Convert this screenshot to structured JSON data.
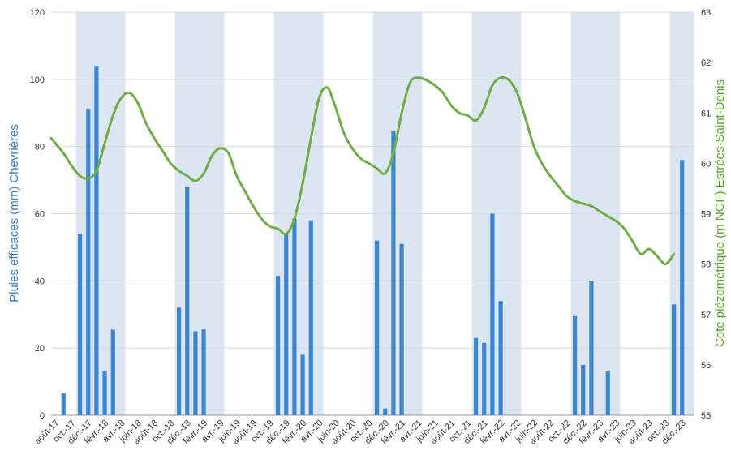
{
  "chart_data": {
    "type": "bar+line",
    "title": "",
    "ylabel_left": "Pluies efficaces (mm) Chevrières",
    "ylabel_right": "Cote piézométrique (m NGF) Estrées-Saint-Denis",
    "ylim_left": [
      0,
      120
    ],
    "yticks_left": [
      "0",
      "20",
      "40",
      "60",
      "80",
      "100",
      "120"
    ],
    "ylim_right": [
      55,
      63
    ],
    "yticks_right": [
      "55",
      "56",
      "57",
      "58",
      "59",
      "60",
      "61",
      "62",
      "63"
    ],
    "grid": "horizontal",
    "colors": {
      "bars": "#3c85cf",
      "line": "#70ad47",
      "band": "#dce6f2"
    },
    "x_tick_labels": [
      "août-17",
      "oct.-17",
      "déc.-17",
      "févr.-18",
      "avr.-18",
      "juin-18",
      "août-18",
      "oct.-18",
      "déc.-18",
      "févr.-19",
      "avr.-19",
      "juin-19",
      "août-19",
      "oct.-19",
      "déc.-19",
      "févr.-20",
      "avr.-20",
      "juin-20",
      "août-20",
      "oct.-20",
      "déc.-20",
      "févr.-21",
      "avr.-21",
      "juin-21",
      "août-21",
      "oct.-21",
      "déc.-21",
      "févr.-22",
      "avr.-22",
      "juin-22",
      "août-22",
      "oct.-22",
      "déc.-22",
      "févr.-23",
      "avr.-23",
      "juin-23",
      "août-23",
      "oct.-23",
      "déc.-23"
    ],
    "shaded_periods": [
      {
        "from": "2017-10",
        "to": "2018-03"
      },
      {
        "from": "2018-10",
        "to": "2019-03"
      },
      {
        "from": "2019-10",
        "to": "2020-03"
      },
      {
        "from": "2020-10",
        "to": "2021-03"
      },
      {
        "from": "2021-10",
        "to": "2022-03"
      },
      {
        "from": "2022-10",
        "to": "2023-03"
      },
      {
        "from": "2023-10",
        "to": "2023-12"
      }
    ],
    "series": [
      {
        "kind": "bar",
        "axis": "left",
        "points": [
          {
            "month": "2017-08",
            "value": 6.5
          },
          {
            "month": "2017-10",
            "value": 54
          },
          {
            "month": "2017-11",
            "value": 91
          },
          {
            "month": "2017-12",
            "value": 104
          },
          {
            "month": "2018-01",
            "value": 13
          },
          {
            "month": "2018-02",
            "value": 25.5
          },
          {
            "month": "2018-10",
            "value": 32
          },
          {
            "month": "2018-11",
            "value": 68
          },
          {
            "month": "2018-12",
            "value": 25
          },
          {
            "month": "2019-01",
            "value": 25.5
          },
          {
            "month": "2019-10",
            "value": 41.5
          },
          {
            "month": "2019-11",
            "value": 54
          },
          {
            "month": "2019-12",
            "value": 58.5
          },
          {
            "month": "2020-01",
            "value": 18
          },
          {
            "month": "2020-02",
            "value": 58
          },
          {
            "month": "2020-10",
            "value": 52
          },
          {
            "month": "2020-11",
            "value": 2
          },
          {
            "month": "2020-12",
            "value": 84.5
          },
          {
            "month": "2021-01",
            "value": 51
          },
          {
            "month": "2021-10",
            "value": 23
          },
          {
            "month": "2021-11",
            "value": 21.5
          },
          {
            "month": "2021-12",
            "value": 60
          },
          {
            "month": "2022-01",
            "value": 34
          },
          {
            "month": "2022-10",
            "value": 29.5
          },
          {
            "month": "2022-11",
            "value": 15
          },
          {
            "month": "2022-12",
            "value": 40
          },
          {
            "month": "2023-02",
            "value": 13
          },
          {
            "month": "2023-10",
            "value": 33
          },
          {
            "month": "2023-11",
            "value": 76
          }
        ]
      },
      {
        "kind": "line",
        "axis": "right",
        "points": [
          {
            "month": "2017-07",
            "value": 60.5
          },
          {
            "month": "2017-08",
            "value": 60.2
          },
          {
            "month": "2017-09",
            "value": 59.95
          },
          {
            "month": "2017-10",
            "value": 59.75
          },
          {
            "month": "2017-11",
            "value": 59.7
          },
          {
            "month": "2017-12",
            "value": 59.85
          },
          {
            "month": "2018-01",
            "value": 60.4
          },
          {
            "month": "2018-02",
            "value": 60.95
          },
          {
            "month": "2018-03",
            "value": 61.3
          },
          {
            "month": "2018-04",
            "value": 61.4
          },
          {
            "month": "2018-05",
            "value": 61.2
          },
          {
            "month": "2018-06",
            "value": 60.8
          },
          {
            "month": "2018-07",
            "value": 60.5
          },
          {
            "month": "2018-08",
            "value": 60.25
          },
          {
            "month": "2018-09",
            "value": 60.0
          },
          {
            "month": "2018-10",
            "value": 59.85
          },
          {
            "month": "2018-11",
            "value": 59.75
          },
          {
            "month": "2018-12",
            "value": 59.65
          },
          {
            "month": "2019-01",
            "value": 59.8
          },
          {
            "month": "2019-02",
            "value": 60.15
          },
          {
            "month": "2019-03",
            "value": 60.3
          },
          {
            "month": "2019-04",
            "value": 60.2
          },
          {
            "month": "2019-05",
            "value": 59.75
          },
          {
            "month": "2019-06",
            "value": 59.45
          },
          {
            "month": "2019-07",
            "value": 59.15
          },
          {
            "month": "2019-08",
            "value": 58.9
          },
          {
            "month": "2019-09",
            "value": 58.75
          },
          {
            "month": "2019-10",
            "value": 58.7
          },
          {
            "month": "2019-11",
            "value": 58.6
          },
          {
            "month": "2019-12",
            "value": 58.9
          },
          {
            "month": "2020-01",
            "value": 59.6
          },
          {
            "month": "2020-02",
            "value": 60.5
          },
          {
            "month": "2020-03",
            "value": 61.3
          },
          {
            "month": "2020-04",
            "value": 61.5
          },
          {
            "month": "2020-05",
            "value": 61.1
          },
          {
            "month": "2020-06",
            "value": 60.6
          },
          {
            "month": "2020-07",
            "value": 60.3
          },
          {
            "month": "2020-08",
            "value": 60.1
          },
          {
            "month": "2020-09",
            "value": 60.0
          },
          {
            "month": "2020-10",
            "value": 59.9
          },
          {
            "month": "2020-11",
            "value": 59.8
          },
          {
            "month": "2020-12",
            "value": 60.2
          },
          {
            "month": "2021-01",
            "value": 61.0
          },
          {
            "month": "2021-02",
            "value": 61.6
          },
          {
            "month": "2021-03",
            "value": 61.7
          },
          {
            "month": "2021-04",
            "value": 61.65
          },
          {
            "month": "2021-05",
            "value": 61.55
          },
          {
            "month": "2021-06",
            "value": 61.4
          },
          {
            "month": "2021-07",
            "value": 61.15
          },
          {
            "month": "2021-08",
            "value": 61.0
          },
          {
            "month": "2021-09",
            "value": 60.95
          },
          {
            "month": "2021-10",
            "value": 60.85
          },
          {
            "month": "2021-11",
            "value": 61.1
          },
          {
            "month": "2021-12",
            "value": 61.55
          },
          {
            "month": "2022-01",
            "value": 61.7
          },
          {
            "month": "2022-02",
            "value": 61.65
          },
          {
            "month": "2022-03",
            "value": 61.4
          },
          {
            "month": "2022-04",
            "value": 60.9
          },
          {
            "month": "2022-05",
            "value": 60.35
          },
          {
            "month": "2022-06",
            "value": 60.0
          },
          {
            "month": "2022-07",
            "value": 59.75
          },
          {
            "month": "2022-08",
            "value": 59.55
          },
          {
            "month": "2022-09",
            "value": 59.35
          },
          {
            "month": "2022-10",
            "value": 59.25
          },
          {
            "month": "2022-11",
            "value": 59.2
          },
          {
            "month": "2022-12",
            "value": 59.15
          },
          {
            "month": "2023-01",
            "value": 59.05
          },
          {
            "month": "2023-02",
            "value": 58.95
          },
          {
            "month": "2023-03",
            "value": 58.85
          },
          {
            "month": "2023-04",
            "value": 58.7
          },
          {
            "month": "2023-05",
            "value": 58.45
          },
          {
            "month": "2023-06",
            "value": 58.2
          },
          {
            "month": "2023-07",
            "value": 58.3
          },
          {
            "month": "2023-08",
            "value": 58.15
          },
          {
            "month": "2023-09",
            "value": 58.0
          },
          {
            "month": "2023-10",
            "value": 58.2
          }
        ]
      }
    ]
  }
}
